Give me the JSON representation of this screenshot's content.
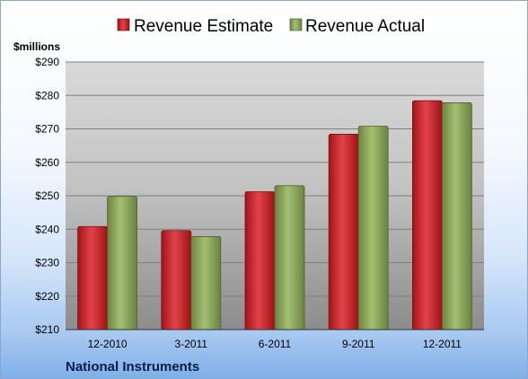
{
  "chart_data": {
    "type": "bar",
    "title": "",
    "xlabel": "",
    "ylabel": "$millions",
    "footer_label": "National Instruments",
    "categories": [
      "12-2010",
      "3-2011",
      "6-2011",
      "9-2011",
      "12-2011"
    ],
    "y_tick_labels": [
      "$210",
      "$220",
      "$230",
      "$240",
      "$250",
      "$260",
      "$270",
      "$280",
      "$290"
    ],
    "ylim": [
      210,
      290
    ],
    "y_step": 10,
    "grid": true,
    "legend_position": "top",
    "series": [
      {
        "name": "Revenue Estimate",
        "color": "#c8262b",
        "values": [
          240.8,
          239.6,
          251.2,
          268.4,
          278.4
        ]
      },
      {
        "name": "Revenue Actual",
        "color": "#8aa55a",
        "values": [
          249.8,
          237.8,
          253.0,
          270.8,
          277.8
        ]
      }
    ]
  }
}
